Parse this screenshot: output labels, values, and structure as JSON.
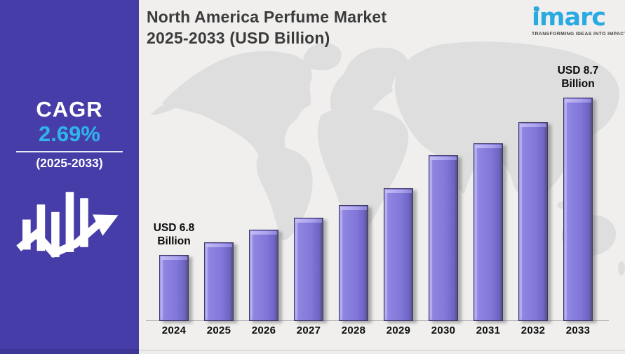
{
  "page": {
    "background_color": "#f0efee"
  },
  "sidebar": {
    "background_color": "#473da9",
    "cagr_label": "CAGR",
    "cagr_value": "2.69%",
    "cagr_value_color": "#2fb5ec",
    "period": "(2025-2033)"
  },
  "header": {
    "title_line1": "North America Perfume Market",
    "title_line2": "2025-2033 (USD Billion)"
  },
  "logo": {
    "brand": "imarc",
    "brand_color": "#29abe2",
    "tagline": "TRANSFORMING IDEAS INTO IMPACT"
  },
  "chart_data": {
    "type": "bar",
    "title": "North America Perfume Market 2025-2033 (USD Billion)",
    "unit": "USD Billion",
    "categories": [
      "2024",
      "2025",
      "2026",
      "2027",
      "2028",
      "2029",
      "2030",
      "2031",
      "2032",
      "2033"
    ],
    "values": [
      6.8,
      6.95,
      7.1,
      7.25,
      7.4,
      7.6,
      8.0,
      8.15,
      8.4,
      8.7
    ],
    "annotations": [
      {
        "category": "2024",
        "line1": "USD 6.8",
        "line2": "Billion"
      },
      {
        "category": "2033",
        "line1": "USD 8.7",
        "line2": "Billion"
      }
    ],
    "bar_color": "#837adc",
    "legend": "none",
    "axis": {
      "x_labels_shown": true,
      "y_labels_shown": false,
      "gridlines": false,
      "y_visual_min": 6.0,
      "y_visual_max": 8.8
    }
  }
}
